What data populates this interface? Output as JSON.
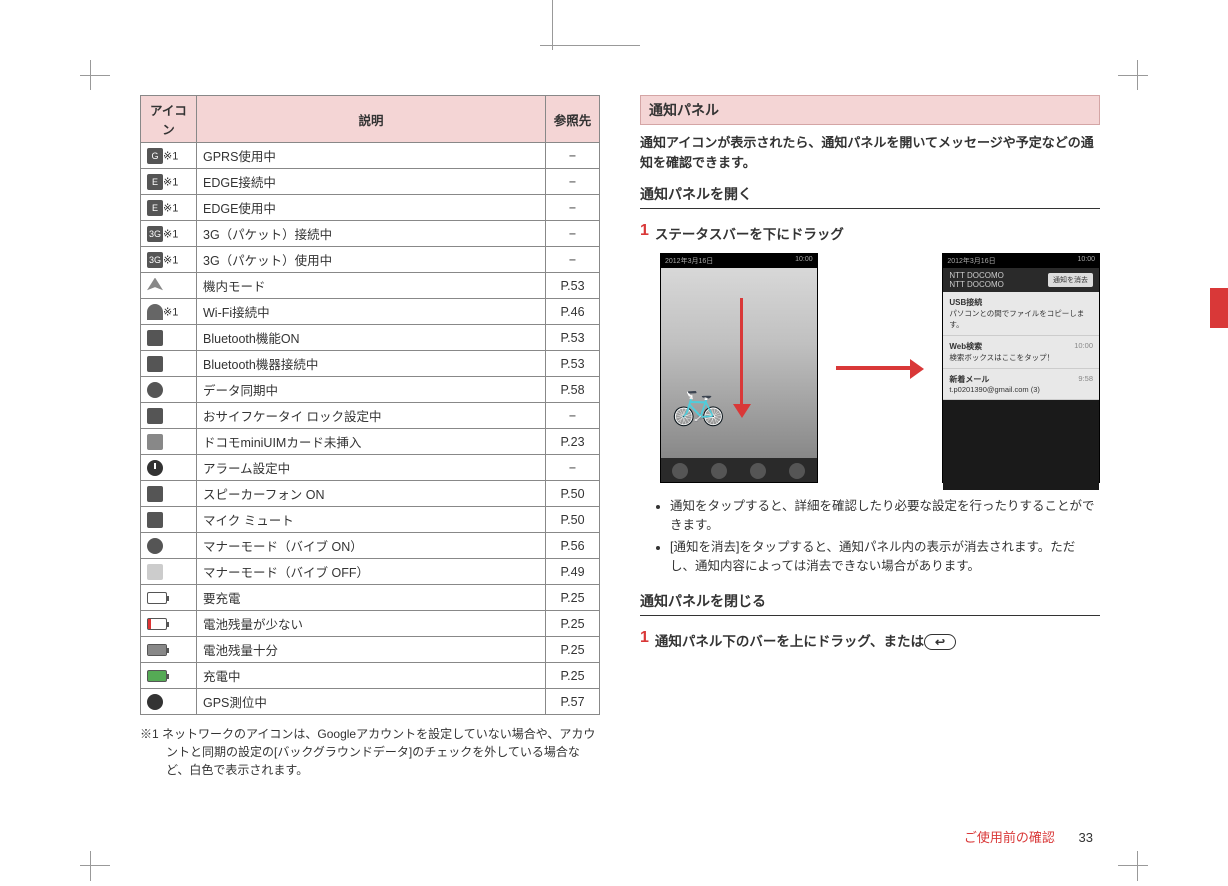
{
  "table": {
    "headers": {
      "icon": "アイコン",
      "desc": "説明",
      "ref": "参照先"
    },
    "note_marker": "※1",
    "rows": [
      {
        "desc": "GPRS使用中",
        "ref": "−",
        "note": true,
        "ic": "G"
      },
      {
        "desc": "EDGE接続中",
        "ref": "−",
        "note": true,
        "ic": "E"
      },
      {
        "desc": "EDGE使用中",
        "ref": "−",
        "note": true,
        "ic": "E"
      },
      {
        "desc": "3G（パケット）接続中",
        "ref": "−",
        "note": true,
        "ic": "3G"
      },
      {
        "desc": "3G（パケット）使用中",
        "ref": "−",
        "note": true,
        "ic": "3G"
      },
      {
        "desc": "機内モード",
        "ref": "P.53",
        "note": false,
        "ic": "plane"
      },
      {
        "desc": "Wi-Fi接続中",
        "ref": "P.46",
        "note": true,
        "ic": "wifi"
      },
      {
        "desc": "Bluetooth機能ON",
        "ref": "P.53",
        "note": false,
        "ic": "bt"
      },
      {
        "desc": "Bluetooth機器接続中",
        "ref": "P.53",
        "note": false,
        "ic": "bt"
      },
      {
        "desc": "データ同期中",
        "ref": "P.58",
        "note": false,
        "ic": "sync"
      },
      {
        "desc": "おサイフケータイ ロック設定中",
        "ref": "−",
        "note": false,
        "ic": "card"
      },
      {
        "desc": "ドコモminiUIMカード未挿入",
        "ref": "P.23",
        "note": false,
        "ic": "warn"
      },
      {
        "desc": "アラーム設定中",
        "ref": "−",
        "note": false,
        "ic": "clock"
      },
      {
        "desc": "スピーカーフォン ON",
        "ref": "P.50",
        "note": false,
        "ic": "spk"
      },
      {
        "desc": "マイク ミュート",
        "ref": "P.50",
        "note": false,
        "ic": "mic"
      },
      {
        "desc": "マナーモード（バイブ ON）",
        "ref": "P.56",
        "note": false,
        "ic": "vibe"
      },
      {
        "desc": "マナーモード（バイブ OFF）",
        "ref": "P.49",
        "note": false,
        "ic": "mute"
      },
      {
        "desc": "要充電",
        "ref": "P.25",
        "note": false,
        "ic": "batt"
      },
      {
        "desc": "電池残量が少ない",
        "ref": "P.25",
        "note": false,
        "ic": "batt low"
      },
      {
        "desc": "電池残量十分",
        "ref": "P.25",
        "note": false,
        "ic": "batt full"
      },
      {
        "desc": "充電中",
        "ref": "P.25",
        "note": false,
        "ic": "batt chg"
      },
      {
        "desc": "GPS測位中",
        "ref": "P.57",
        "note": false,
        "ic": "gps"
      }
    ]
  },
  "footnote": "※1 ネットワークのアイコンは、Googleアカウントを設定していない場合や、アカウントと同期の設定の[バックグラウンドデータ]のチェックを外している場合など、白色で表示されます。",
  "right": {
    "heading": "通知パネル",
    "intro": "通知アイコンが表示されたら、通知パネルを開いてメッセージや予定などの通知を確認できます。",
    "open_heading": "通知パネルを開く",
    "open_step": "ステータスバーを下にドラッグ",
    "bullets": [
      "通知をタップすると、詳細を確認したり必要な設定を行ったりすることができます。",
      "[通知を消去]をタップすると、通知パネル内の表示が消去されます。ただし、通知内容によっては消去できない場合があります。"
    ],
    "close_heading": "通知パネルを閉じる",
    "close_step_prefix": "通知パネル下のバーを上にドラッグ、または",
    "back_key": "↩"
  },
  "screens": {
    "date": "2012年3月16日",
    "time": "10:00",
    "carrier": "NTT DOCOMO\nNTT DOCOMO",
    "clear_btn": "通知を消去",
    "items": [
      {
        "title": "USB接続",
        "sub": "パソコンとの間でファイルをコピーします。",
        "right": ""
      },
      {
        "title": "Web検索",
        "sub": "検索ボックスはここをタップ！",
        "right": "10:00"
      },
      {
        "title": "新着メール",
        "sub": "t.p0201390@gmail.com (3)",
        "right": "9:58"
      }
    ]
  },
  "footer": {
    "section": "ご使用前の確認",
    "page": "33"
  }
}
